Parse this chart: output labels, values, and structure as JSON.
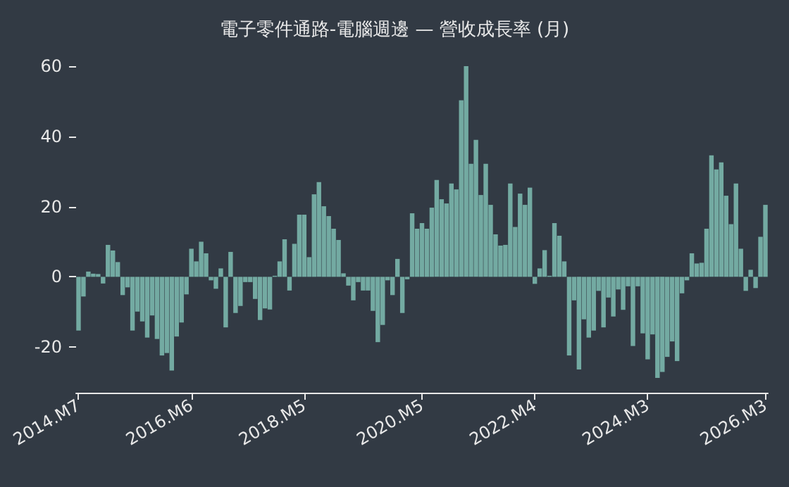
{
  "chart_data": {
    "type": "bar",
    "title": "電子零件通路-電腦週邊 — 營收成長率 (月)",
    "categories": [
      "2014.M7",
      null,
      null,
      null,
      null,
      null,
      null,
      null,
      null,
      null,
      null,
      null,
      null,
      null,
      null,
      null,
      null,
      null,
      null,
      null,
      null,
      null,
      null,
      "2016.M6",
      null,
      null,
      null,
      null,
      null,
      null,
      null,
      null,
      null,
      null,
      null,
      null,
      null,
      null,
      null,
      null,
      null,
      null,
      null,
      null,
      null,
      null,
      "2018.M5",
      null,
      null,
      null,
      null,
      null,
      null,
      null,
      null,
      null,
      null,
      null,
      null,
      null,
      null,
      null,
      null,
      null,
      null,
      null,
      null,
      null,
      null,
      null,
      "2020.M5",
      null,
      null,
      null,
      null,
      null,
      null,
      null,
      null,
      null,
      null,
      null,
      null,
      null,
      null,
      null,
      null,
      null,
      null,
      null,
      null,
      null,
      null,
      "2022.M4",
      null,
      null,
      null,
      null,
      null,
      null,
      null,
      null,
      null,
      null,
      null,
      null,
      null,
      null,
      null,
      null,
      null,
      null,
      null,
      null,
      null,
      null,
      "2024.M3",
      null,
      null,
      null,
      null,
      null,
      null,
      null,
      null,
      null,
      null,
      null,
      null,
      null,
      null,
      null,
      null,
      null,
      null,
      null,
      null,
      null,
      null,
      null,
      "2026.M3"
    ],
    "values": [
      -15.3,
      -5.6,
      1.5,
      0.9,
      0.8,
      -1.9,
      9.1,
      7.5,
      4.2,
      -5.2,
      -3,
      -15.3,
      -9.9,
      -12.7,
      -17.3,
      -11,
      -17.7,
      -22.4,
      -21.7,
      -26.7,
      -17,
      -13,
      -5,
      8,
      4.4,
      10,
      6.7,
      -1,
      -3.4,
      2.4,
      -14.4,
      7.1,
      -10.3,
      -8.3,
      -1.5,
      -1.5,
      -6.3,
      -12.3,
      -9,
      -9.3,
      0.3,
      4.4,
      10.7,
      -3.9,
      9.4,
      17.7,
      17.7,
      5.6,
      23.5,
      27,
      20.1,
      17.3,
      13.7,
      10.5,
      1,
      -2.5,
      -6.7,
      -1.5,
      -3.9,
      -3.9,
      -9.7,
      -18.6,
      -13.7,
      -1,
      -5.2,
      5.1,
      -10.3,
      -0.7,
      18.1,
      13.7,
      15.3,
      13.7,
      19.7,
      27.6,
      22.1,
      20.9,
      26.6,
      24.9,
      50.3,
      60,
      32.2,
      39,
      23.3,
      32.2,
      20.5,
      12.1,
      8.9,
      9.1,
      26.6,
      14.2,
      23.7,
      20.5,
      25.4,
      -2,
      2.4,
      7.6,
      0.3,
      15.3,
      11.7,
      4.4,
      -22.4,
      -6.7,
      -26.4,
      -12.1,
      -17.3,
      -15.3,
      -4,
      -14.4,
      -5.9,
      -11.3,
      -3.6,
      -9.4,
      -2.7,
      -19.7,
      -2.7,
      -16.1,
      -23.5,
      -16.4,
      -28.8,
      -27.1,
      -22.8,
      -18.4,
      -24,
      -4.7,
      -1,
      6.7,
      3.8,
      4,
      13.7,
      34.6,
      30.6,
      32.6,
      23.1,
      15,
      26.6,
      8,
      -4,
      2,
      -3.2,
      11.4,
      20.5
    ],
    "color": "#73aaa2",
    "ylim": [
      -33,
      60
    ],
    "yticks": [
      -20,
      0,
      20,
      40,
      60
    ]
  }
}
